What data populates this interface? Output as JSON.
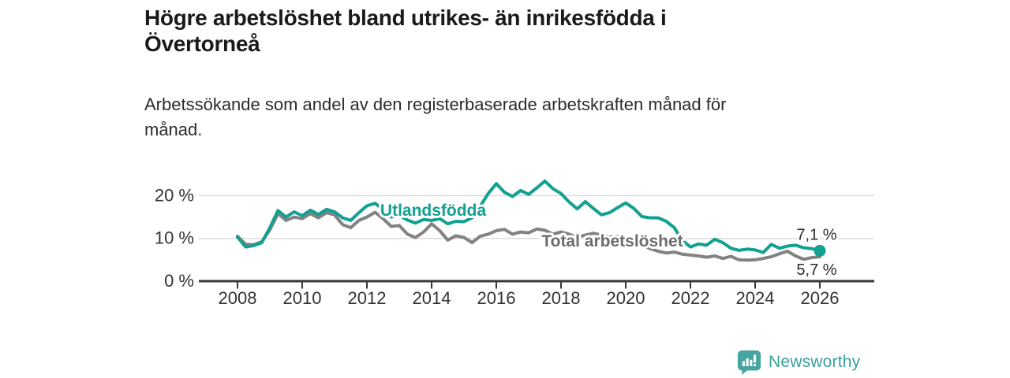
{
  "page": {
    "title": "Högre arbetslöshet bland utrikes- än inrikesfödda i\nÖvertorneå",
    "subtitle": "Arbetssökande som andel av den registerbaserade arbetskraften månad för\nmånad."
  },
  "branding": {
    "logo_text": "Newsworthy",
    "logo_icon": "bar-chart-speech-bubble-icon",
    "brand_color": "#3d9e9c"
  },
  "chart_data": {
    "type": "line",
    "title": "Högre arbetslöshet bland utrikes- än inrikesfödda i Övertorneå",
    "subtitle": "Arbetssökande som andel av den registerbaserade arbetskraften månad för månad.",
    "unit": "%",
    "grid": "horizontal",
    "legend_position": "inline-labels",
    "x_start": 2008.0,
    "x_step": 0.25,
    "x_ticks": [
      2008,
      2010,
      2012,
      2014,
      2016,
      2018,
      2020,
      2022,
      2024,
      2026
    ],
    "x_tick_labels": [
      "2008",
      "2010",
      "2012",
      "2014",
      "2016",
      "2018",
      "2020",
      "2022",
      "2024",
      "2026"
    ],
    "y_ticks": [
      0,
      10,
      20
    ],
    "y_tick_labels": [
      "0 %",
      "10 %",
      "20 %"
    ],
    "ylim": [
      0,
      24
    ],
    "xlim": [
      2006.8,
      2027.4
    ],
    "series": [
      {
        "name": "Utlandsfödda",
        "color": "#12a091",
        "label_color": "#12a091",
        "end_label": "7,1 %",
        "end_value": 7.1,
        "end_dot": true,
        "values": [
          10.3,
          8.0,
          8.3,
          9.0,
          12.5,
          16.5,
          15.0,
          16.2,
          15.3,
          16.6,
          15.6,
          16.8,
          16.2,
          14.8,
          14.2,
          16.0,
          17.6,
          18.2,
          16.8,
          15.0,
          15.4,
          14.3,
          13.6,
          14.4,
          14.2,
          14.6,
          13.4,
          14.0,
          13.9,
          14.8,
          17.5,
          20.5,
          22.8,
          20.8,
          19.8,
          21.2,
          20.3,
          21.8,
          23.4,
          21.6,
          20.5,
          18.5,
          16.9,
          18.6,
          17.0,
          15.5,
          16.0,
          17.2,
          18.3,
          17.0,
          15.1,
          14.8,
          14.8,
          14.0,
          12.5,
          9.5,
          8.0,
          8.7,
          8.4,
          9.8,
          9.0,
          7.7,
          7.2,
          7.5,
          7.3,
          6.7,
          8.6,
          7.7,
          8.2,
          8.4,
          7.8,
          7.6,
          7.1
        ]
      },
      {
        "name": "Total arbetslöshet",
        "color": "#828282",
        "label_color": "#6d6d6d",
        "end_label": "5,7 %",
        "end_value": 5.7,
        "end_dot": false,
        "values": [
          10.5,
          8.6,
          8.5,
          9.2,
          12.0,
          15.8,
          14.2,
          15.0,
          14.6,
          15.8,
          14.8,
          16.0,
          15.5,
          13.2,
          12.5,
          14.2,
          15.0,
          16.1,
          14.6,
          12.8,
          13.0,
          11.0,
          10.2,
          11.5,
          13.4,
          11.8,
          9.6,
          10.6,
          10.2,
          9.0,
          10.5,
          11.0,
          11.8,
          12.1,
          11.0,
          11.5,
          11.3,
          12.2,
          11.9,
          11.0,
          11.5,
          11.0,
          10.2,
          10.8,
          11.2,
          10.8,
          10.3,
          10.5,
          9.8,
          9.2,
          8.4,
          7.6,
          7.0,
          6.6,
          6.8,
          6.3,
          6.1,
          5.9,
          5.6,
          5.9,
          5.3,
          5.8,
          5.0,
          4.9,
          5.0,
          5.3,
          5.7,
          6.4,
          7.0,
          5.9,
          5.1,
          5.5,
          5.7
        ]
      }
    ]
  }
}
